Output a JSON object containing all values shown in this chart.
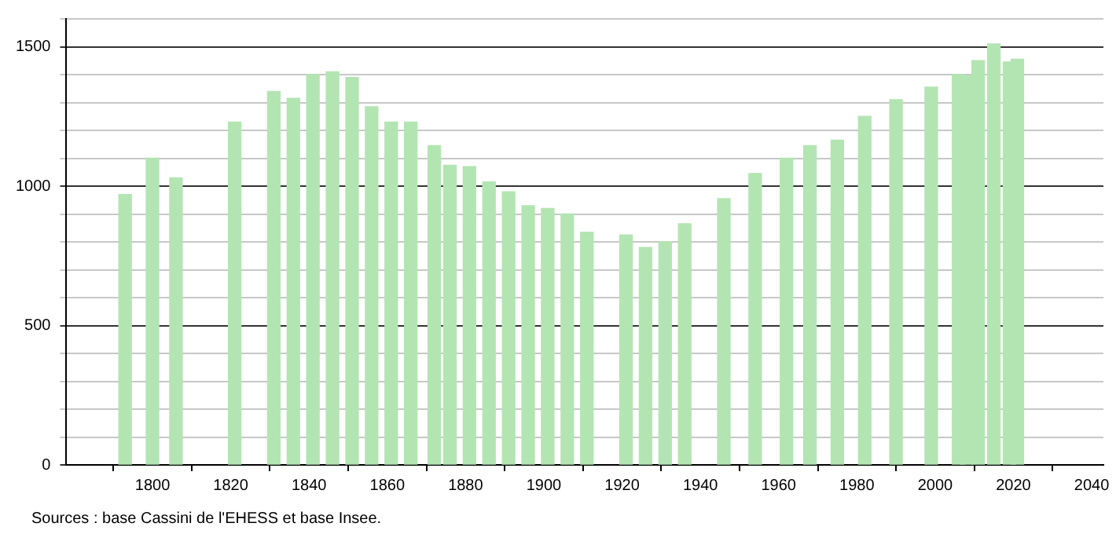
{
  "chart_data": {
    "type": "bar",
    "annotations": [
      "Sources : base Cassini de l'EHESS et base Insee."
    ],
    "x": [
      1793,
      1800,
      1806,
      1821,
      1831,
      1836,
      1841,
      1846,
      1851,
      1856,
      1861,
      1866,
      1872,
      1876,
      1881,
      1886,
      1891,
      1896,
      1901,
      1906,
      1911,
      1921,
      1926,
      1931,
      1936,
      1946,
      1954,
      1962,
      1968,
      1975,
      1982,
      1990,
      1999,
      2006,
      2008,
      2011,
      2015,
      2019,
      2021
    ],
    "values": [
      970,
      1100,
      1030,
      1230,
      1340,
      1315,
      1400,
      1410,
      1390,
      1285,
      1230,
      1230,
      1145,
      1075,
      1070,
      1015,
      980,
      930,
      920,
      900,
      835,
      825,
      780,
      800,
      865,
      955,
      1045,
      1100,
      1145,
      1165,
      1250,
      1310,
      1355,
      1400,
      1395,
      1450,
      1510,
      1445,
      1455
    ],
    "color": "#b3e5b3",
    "xlim": [
      1778,
      2043
    ],
    "xticks": [
      1800,
      1820,
      1840,
      1860,
      1880,
      1900,
      1920,
      1940,
      1960,
      1980,
      2000,
      2020,
      2040
    ],
    "ylim": [
      0,
      1600
    ],
    "yticks": [
      0,
      {
        "value": 100,
        "label": null
      },
      {
        "value": 200,
        "label": null
      },
      {
        "value": 300,
        "label": null
      },
      {
        "value": 400,
        "label": null
      },
      500,
      {
        "value": 600,
        "label": null
      },
      {
        "value": 700,
        "label": null
      },
      {
        "value": 800,
        "label": null
      },
      {
        "value": 900,
        "label": null
      },
      1000,
      {
        "value": 1100,
        "label": null
      },
      {
        "value": 1200,
        "label": null
      },
      {
        "value": 1300,
        "label": null
      },
      {
        "value": 1400,
        "label": null
      },
      1500,
      {
        "value": 1600,
        "label": null
      }
    ],
    "grid": "y"
  }
}
